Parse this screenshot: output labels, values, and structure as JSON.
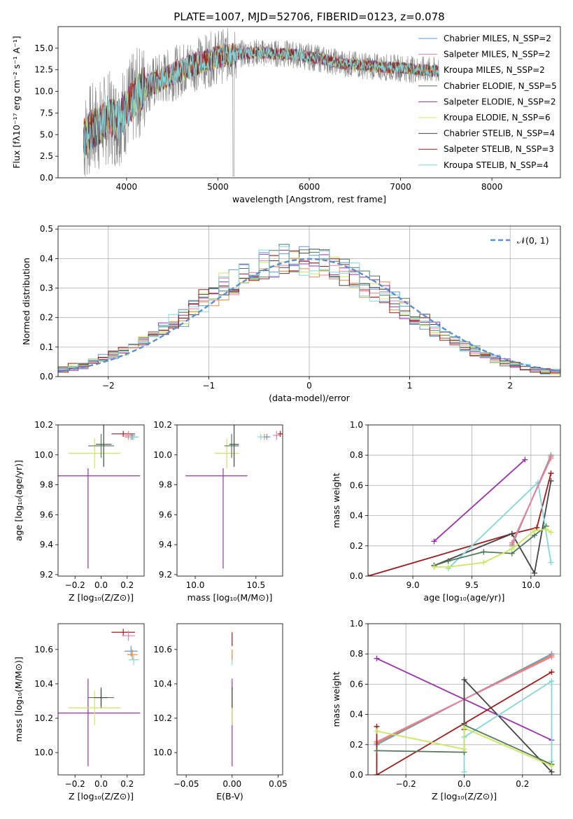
{
  "figure_title": "PLATE=1007, MJD=52706, FIBERID=0123, z=0.078",
  "colors": {
    "Chabrier MILES": "#5b9bd5",
    "Salpeter MILES": "#e87fa9",
    "Kroupa MILES": "#e88a3a",
    "Chabrier ELODIE": "#4f7a5a",
    "Salpeter ELODIE": "#9b2fb0",
    "Kroupa ELODIE": "#cce85a",
    "Chabrier STELIB": "#444444",
    "Salpeter STELIB": "#a31a1a",
    "Kroupa STELIB": "#7fd8dc",
    "gaussian": "#5a8fd6",
    "spectrum_gray": "#808080"
  },
  "chart_data": [
    {
      "id": "spectrum",
      "type": "line",
      "title": "PLATE=1007, MJD=52706, FIBERID=0123, z=0.078",
      "xlabel": "wavelength [Angstrom, rest frame]",
      "ylabel": "Flux [fλ10⁻¹⁷ erg cm⁻² s⁻¹ A⁻¹]",
      "xlim": [
        3250,
        8750
      ],
      "ylim": [
        0,
        17.5
      ],
      "xticks": [
        4000,
        5000,
        6000,
        7000,
        8000
      ],
      "yticks": [
        0.0,
        2.5,
        5.0,
        7.5,
        10.0,
        12.5,
        15.0
      ],
      "legend_position": "right",
      "legend": [
        "Chabrier MILES, N_SSP=2",
        "Salpeter MILES, N_SSP=2",
        "Kroupa MILES, N_SSP=2",
        "Chabrier ELODIE, N_SSP=5",
        "Salpeter ELODIE, N_SSP=2",
        "Kroupa ELODIE, N_SSP=6",
        "Chabrier STELIB, N_SSP=4",
        "Salpeter STELIB, N_SSP=3",
        "Kroupa STELIB, N_SSP=4"
      ],
      "continuum": {
        "x": [
          3530,
          3600,
          3700,
          3800,
          3900,
          4000,
          4100,
          4200,
          4300,
          4400,
          4500,
          4600,
          4700,
          4800,
          4900,
          5000,
          5200,
          5400,
          5600,
          5800,
          6000,
          6200,
          6400,
          6600,
          6800,
          7000,
          7200,
          7400
        ],
        "y": [
          4.5,
          5.5,
          6.0,
          7.0,
          6.5,
          8.0,
          9.5,
          10.5,
          11.0,
          11.5,
          12.0,
          12.5,
          13.0,
          13.3,
          13.6,
          14.0,
          14.3,
          14.5,
          14.4,
          14.3,
          14.0,
          13.6,
          13.2,
          13.0,
          12.8,
          12.7,
          12.5,
          12.4
        ]
      }
    },
    {
      "id": "residuals",
      "type": "histogram",
      "xlabel": "(data-model)/error",
      "ylabel": "Normed distribution",
      "xlim": [
        -2.5,
        2.5
      ],
      "ylim": [
        0,
        0.51
      ],
      "xticks": [
        -2,
        -1,
        0,
        1,
        2
      ],
      "yticks": [
        0.0,
        0.1,
        0.2,
        0.3,
        0.4,
        0.5
      ],
      "grid": true,
      "legend": [
        "𝒩(0, 1)"
      ],
      "legend_position": "upper right"
    },
    {
      "id": "age_vs_Z",
      "type": "errorbar",
      "xlabel": "Z [log₁₀(Z/Z⊙)]",
      "ylabel": "age  [log₁₀(age/yr)]",
      "xlim": [
        -0.33,
        0.33
      ],
      "ylim": [
        9.19,
        10.2
      ],
      "xticks": [
        -0.2,
        0.0,
        0.2
      ],
      "xticklabels": [
        "−0.2",
        "0.0",
        "0.2"
      ],
      "yticks": [
        9.2,
        9.4,
        9.6,
        9.8,
        10.0,
        10.2
      ],
      "points": [
        {
          "series": "Salpeter ELODIE",
          "x": -0.1,
          "xerr": 0.4,
          "y": 9.86,
          "yerr": [
            0.62,
            0.05
          ]
        },
        {
          "series": "Kroupa ELODIE",
          "x": -0.05,
          "xerr": 0.2,
          "y": 10.01,
          "yerr": 0.1
        },
        {
          "series": "Chabrier ELODIE",
          "x": 0.0,
          "xerr": 0.1,
          "y": 10.06,
          "yerr": 0.08
        },
        {
          "series": "Chabrier STELIB",
          "x": 0.02,
          "xerr": 0.06,
          "y": 10.07,
          "yerr": 0.15
        },
        {
          "series": "Salpeter STELIB",
          "x": 0.17,
          "xerr": 0.09,
          "y": 10.14,
          "yerr": 0.02
        },
        {
          "series": "Salpeter MILES",
          "x": 0.21,
          "xerr": 0.05,
          "y": 10.13,
          "yerr": 0.03
        },
        {
          "series": "Kroupa MILES",
          "x": 0.23,
          "xerr": 0.05,
          "y": 10.12,
          "yerr": 0.02
        },
        {
          "series": "Chabrier MILES",
          "x": 0.24,
          "xerr": 0.04,
          "y": 10.12,
          "yerr": 0.02
        },
        {
          "series": "Kroupa STELIB",
          "x": 0.25,
          "xerr": 0.04,
          "y": 10.12,
          "yerr": 0.02
        }
      ]
    },
    {
      "id": "age_vs_mass",
      "type": "errorbar",
      "xlabel": "mass [log₁₀(M/M⊙)]",
      "ylabel": "",
      "xlim": [
        9.85,
        10.72
      ],
      "ylim": [
        9.19,
        10.2
      ],
      "xticks": [
        10.0,
        10.5
      ],
      "yticks": [
        9.2,
        9.4,
        9.6,
        9.8,
        10.0,
        10.2
      ],
      "points": [
        {
          "series": "Salpeter ELODIE",
          "x": 10.23,
          "xerr": [
            0.31,
            0.2
          ],
          "y": 9.86,
          "yerr": [
            0.62,
            0.05
          ]
        },
        {
          "series": "Kroupa ELODIE",
          "x": 10.26,
          "xerr": 0.1,
          "y": 10.01,
          "yerr": 0.1
        },
        {
          "series": "Chabrier ELODIE",
          "x": 10.3,
          "xerr": 0.06,
          "y": 10.06,
          "yerr": 0.08
        },
        {
          "series": "Chabrier STELIB",
          "x": 10.32,
          "xerr": 0.04,
          "y": 10.07,
          "yerr": 0.15
        },
        {
          "series": "Salpeter STELIB",
          "x": 10.7,
          "xerr": 0.02,
          "y": 10.14,
          "yerr": 0.02
        },
        {
          "series": "Salpeter MILES",
          "x": 10.67,
          "xerr": 0.03,
          "y": 10.13,
          "yerr": 0.03
        },
        {
          "series": "Kroupa MILES",
          "x": 10.57,
          "xerr": 0.03,
          "y": 10.12,
          "yerr": 0.02
        },
        {
          "series": "Chabrier MILES",
          "x": 10.59,
          "xerr": 0.03,
          "y": 10.12,
          "yerr": 0.02
        },
        {
          "series": "Kroupa STELIB",
          "x": 10.54,
          "xerr": 0.03,
          "y": 10.12,
          "yerr": 0.02
        }
      ]
    },
    {
      "id": "weight_vs_age",
      "type": "line",
      "xlabel": "age  [log₁₀(age/yr)]",
      "ylabel": "mass weight",
      "xlim": [
        8.62,
        10.25
      ],
      "ylim": [
        0,
        1.0
      ],
      "xticks": [
        9.0,
        9.5,
        10.0
      ],
      "yticks": [
        0.0,
        0.2,
        0.4,
        0.6,
        0.8,
        1.0
      ],
      "grid": true,
      "series": [
        {
          "name": "Salpeter ELODIE",
          "x": [
            9.18,
            9.95
          ],
          "y": [
            0.23,
            0.77
          ]
        },
        {
          "name": "Salpeter STELIB",
          "x": [
            8.62,
            9.84,
            10.05,
            10.17
          ],
          "y": [
            0.0,
            0.28,
            0.32,
            0.68
          ]
        },
        {
          "name": "Chabrier STELIB",
          "x": [
            9.18,
            9.84,
            10.03,
            10.17
          ],
          "y": [
            0.07,
            0.28,
            0.02,
            0.63
          ]
        },
        {
          "name": "Kroupa STELIB",
          "x": [
            9.3,
            10.06,
            10.17
          ],
          "y": [
            0.05,
            0.62,
            0.09
          ]
        },
        {
          "name": "Chabrier MILES",
          "x": [
            9.84,
            10.17
          ],
          "y": [
            0.2,
            0.8
          ]
        },
        {
          "name": "Kroupa MILES",
          "x": [
            9.84,
            10.17
          ],
          "y": [
            0.21,
            0.79
          ]
        },
        {
          "name": "Salpeter MILES",
          "x": [
            9.84,
            10.17
          ],
          "y": [
            0.22,
            0.78
          ]
        },
        {
          "name": "Chabrier ELODIE",
          "x": [
            9.18,
            9.3,
            9.6,
            9.84,
            10.03,
            10.13
          ],
          "y": [
            0.07,
            0.1,
            0.16,
            0.15,
            0.27,
            0.33
          ]
        },
        {
          "name": "Kroupa ELODIE",
          "x": [
            9.18,
            9.3,
            9.6,
            9.84,
            10.03,
            10.13,
            10.17
          ],
          "y": [
            0.06,
            0.06,
            0.09,
            0.18,
            0.3,
            0.31,
            0.29
          ]
        }
      ]
    },
    {
      "id": "mass_vs_Z",
      "type": "errorbar",
      "xlabel": "Z [log₁₀(Z/Z⊙)]",
      "ylabel": "mass [log₁₀(M/M⊙)]",
      "xlim": [
        -0.33,
        0.33
      ],
      "ylim": [
        9.87,
        10.75
      ],
      "xticks": [
        -0.2,
        0.0,
        0.2
      ],
      "xticklabels": [
        "−0.2",
        "0.0",
        "0.2"
      ],
      "yticks": [
        10.0,
        10.2,
        10.4,
        10.6
      ],
      "points": [
        {
          "series": "Salpeter ELODIE",
          "x": -0.1,
          "xerr": 0.4,
          "y": 10.23,
          "yerr": [
            0.31,
            0.2
          ]
        },
        {
          "series": "Kroupa ELODIE",
          "x": -0.05,
          "xerr": 0.2,
          "y": 10.26,
          "yerr": 0.1
        },
        {
          "series": "Chabrier ELODIE",
          "x": 0.0,
          "xerr": 0.1,
          "y": 10.32,
          "yerr": 0.06
        },
        {
          "series": "Chabrier STELIB",
          "x": 0.0,
          "xerr": 0.05,
          "y": 10.32,
          "yerr": 0.05
        },
        {
          "series": "Salpeter STELIB",
          "x": 0.17,
          "xerr": 0.09,
          "y": 10.7,
          "yerr": 0.02
        },
        {
          "series": "Salpeter MILES",
          "x": 0.21,
          "xerr": 0.05,
          "y": 10.68,
          "yerr": 0.03
        },
        {
          "series": "Chabrier MILES",
          "x": 0.23,
          "xerr": 0.05,
          "y": 10.59,
          "yerr": 0.03
        },
        {
          "series": "Kroupa MILES",
          "x": 0.24,
          "xerr": 0.04,
          "y": 10.57,
          "yerr": 0.03
        },
        {
          "series": "Kroupa STELIB",
          "x": 0.25,
          "xerr": 0.04,
          "y": 10.54,
          "yerr": 0.03
        }
      ]
    },
    {
      "id": "mass_vs_ebv",
      "type": "errorbar",
      "xlabel": "E(B-V)",
      "ylabel": "",
      "xlim": [
        -0.06,
        0.055
      ],
      "ylim": [
        9.87,
        10.75
      ],
      "xticks": [
        -0.05,
        0.0,
        0.05
      ],
      "xticklabels": [
        "−0.05",
        "0.00",
        "0.05"
      ],
      "yticks": [
        10.0,
        10.2,
        10.4,
        10.6
      ],
      "points": [
        {
          "series": "Salpeter ELODIE",
          "x": 0.0,
          "xerr": 0,
          "y": 10.23,
          "yerr": [
            0.31,
            0.2
          ]
        },
        {
          "series": "Kroupa ELODIE",
          "x": 0.0,
          "xerr": 0,
          "y": 10.26,
          "yerr": 0.1
        },
        {
          "series": "Chabrier STELIB",
          "x": 0.0,
          "xerr": 0,
          "y": 10.32,
          "yerr": 0.06
        },
        {
          "series": "Kroupa STELIB",
          "x": 0.0,
          "xerr": 0,
          "y": 10.54,
          "yerr": 0.03
        },
        {
          "series": "Kroupa MILES",
          "x": 0.0,
          "xerr": 0,
          "y": 10.57,
          "yerr": 0.03
        },
        {
          "series": "Salpeter STELIB",
          "x": 0.0,
          "xerr": 0,
          "y": 10.66,
          "yerr": 0.04
        }
      ]
    },
    {
      "id": "weight_vs_Z",
      "type": "line",
      "xlabel": "Z [log₁₀(Z/Z⊙)]",
      "ylabel": "mass weight",
      "xlim": [
        -0.33,
        0.33
      ],
      "ylim": [
        0,
        1.0
      ],
      "xticks": [
        -0.2,
        0.0,
        0.2
      ],
      "xticklabels": [
        "−0.2",
        "0.0",
        "0.2"
      ],
      "yticks": [
        0.0,
        0.2,
        0.4,
        0.6,
        0.8,
        1.0
      ],
      "grid": true,
      "series": [
        {
          "name": "Salpeter ELODIE",
          "x": [
            -0.3,
            0.3
          ],
          "y": [
            0.77,
            0.23
          ]
        },
        {
          "name": "Chabrier MILES",
          "x": [
            -0.3,
            0.3
          ],
          "y": [
            0.2,
            0.8
          ]
        },
        {
          "name": "Kroupa MILES",
          "x": [
            -0.3,
            0.3
          ],
          "y": [
            0.21,
            0.79
          ]
        },
        {
          "name": "Salpeter MILES",
          "x": [
            -0.3,
            0.3
          ],
          "y": [
            0.22,
            0.78
          ]
        },
        {
          "name": "Salpeter STELIB",
          "x": [
            -0.3,
            -0.3,
            0.0,
            0.3
          ],
          "y": [
            0.32,
            0.0,
            0.34,
            0.68
          ]
        },
        {
          "name": "Chabrier STELIB",
          "x": [
            0.0,
            0.0,
            0.3
          ],
          "y": [
            0.3,
            0.63,
            0.02
          ]
        },
        {
          "name": "Kroupa STELIB",
          "x": [
            0.0,
            0.0,
            0.3,
            0.3
          ],
          "y": [
            0.02,
            0.25,
            0.62,
            0.09
          ]
        },
        {
          "name": "Chabrier ELODIE",
          "x": [
            -0.3,
            0.0,
            0.0,
            0.3
          ],
          "y": [
            0.16,
            0.15,
            0.33,
            0.07
          ]
        },
        {
          "name": "Kroupa ELODIE",
          "x": [
            -0.3,
            0.0,
            0.0,
            0.3
          ],
          "y": [
            0.29,
            0.17,
            0.31,
            0.06
          ]
        }
      ]
    }
  ]
}
